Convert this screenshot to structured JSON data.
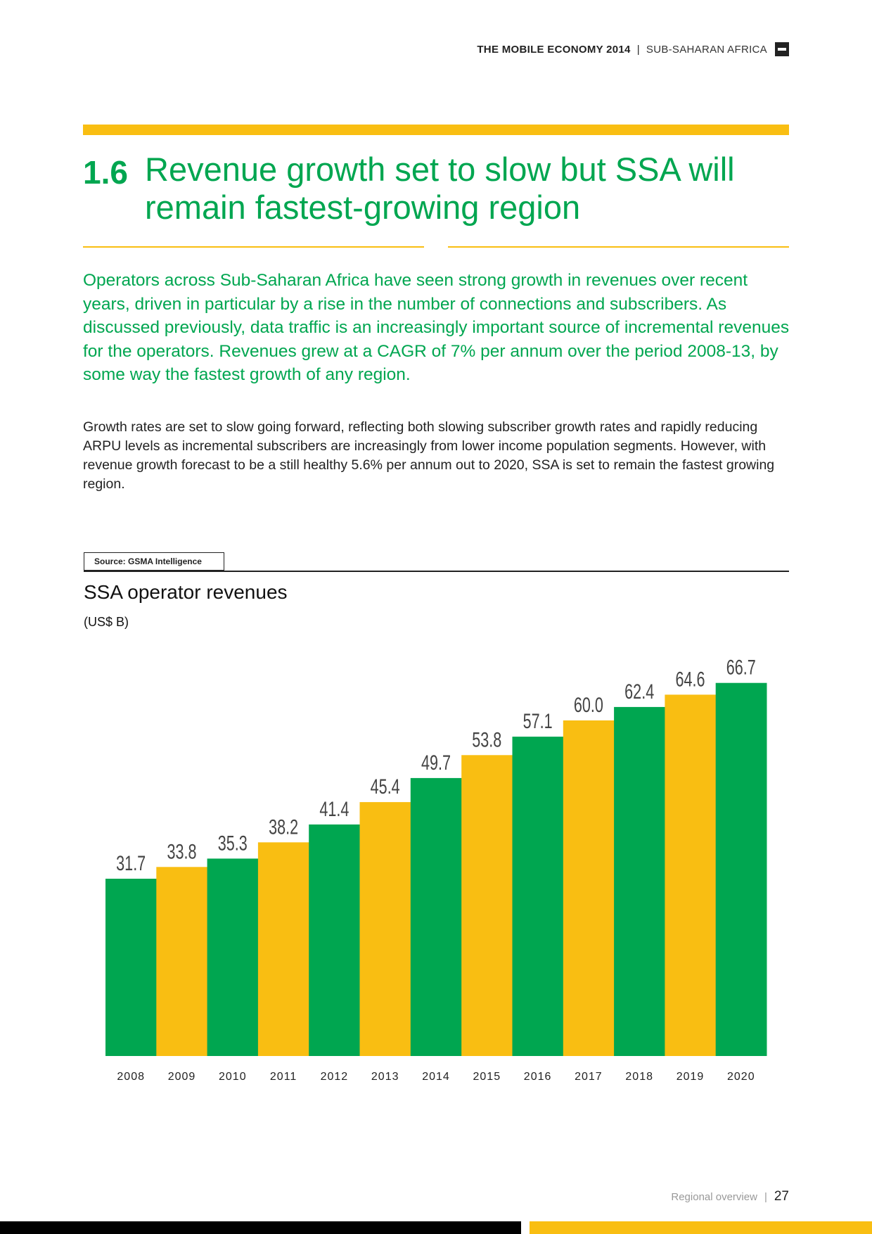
{
  "header": {
    "report": "THE MOBILE ECONOMY 2014",
    "separator": "|",
    "region": "SUB-SAHARAN AFRICA"
  },
  "section": {
    "number": "1.6",
    "title": "Revenue growth set to slow but SSA will remain fastest-growing region"
  },
  "intro": "Operators across Sub-Saharan Africa have seen strong growth in revenues over recent years, driven in particular by a rise in the number of connections and subscribers. As discussed previously, data traffic is an increasingly important source of incremental revenues for the operators. Revenues grew at a CAGR of 7% per annum over the period 2008-13, by some way the fastest growth of any region.",
  "body": "Growth rates are set to slow going forward, reflecting both slowing subscriber growth rates and rapidly reducing ARPU levels as incremental subscribers are increasingly from lower income population segments. However, with revenue growth forecast to be a still healthy 5.6% per annum out to 2020, SSA is set to remain the fastest growing region.",
  "source": "Source: GSMA Intelligence",
  "colors": {
    "green": "#00a650",
    "yellow": "#f9be12"
  },
  "chart_data": {
    "type": "bar",
    "title": "SSA operator revenues",
    "unit": "(US$ B)",
    "categories": [
      "2008",
      "2009",
      "2010",
      "2011",
      "2012",
      "2013",
      "2014",
      "2015",
      "2016",
      "2017",
      "2018",
      "2019",
      "2020"
    ],
    "values": [
      31.7,
      33.8,
      35.3,
      38.2,
      41.4,
      45.4,
      49.7,
      53.8,
      57.1,
      60.0,
      62.4,
      64.6,
      66.7
    ],
    "labels": [
      "31.7",
      "33.8",
      "35.3",
      "38.2",
      "41.4",
      "45.4",
      "49.7",
      "53.8",
      "57.1",
      "60.0",
      "62.4",
      "64.6",
      "66.7"
    ],
    "bar_colors": [
      "#00a650",
      "#f9be12",
      "#00a650",
      "#f9be12",
      "#00a650",
      "#f9be12",
      "#00a650",
      "#f9be12",
      "#00a650",
      "#f9be12",
      "#00a650",
      "#f9be12",
      "#00a650"
    ],
    "ylim": [
      0,
      70
    ],
    "grid": false,
    "legend": "none"
  },
  "footer": {
    "section": "Regional overview",
    "separator": "|",
    "page": "27"
  }
}
